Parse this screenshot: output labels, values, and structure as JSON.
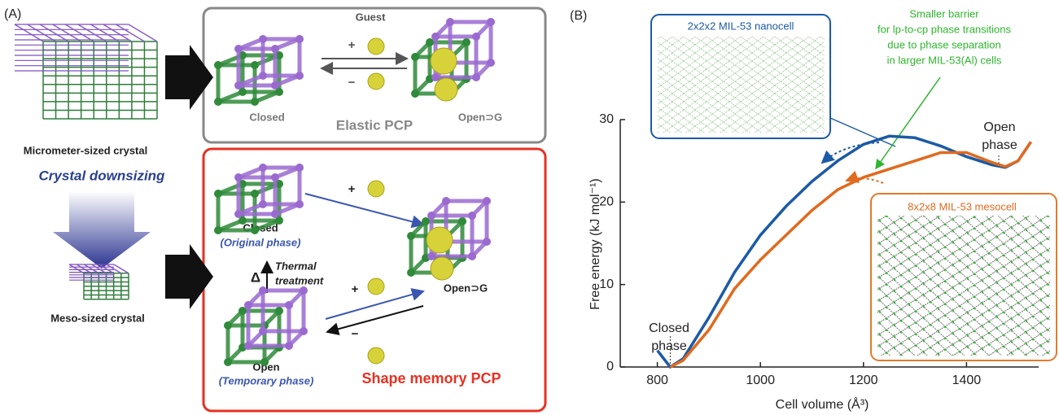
{
  "panel_a": {
    "label": "(A)",
    "micro": "Micrometer-sized crystal",
    "downsizing": "Crystal downsizing",
    "meso": "Meso-sized crystal",
    "elastic": {
      "guest": "Guest",
      "plus": "+",
      "minus": "−",
      "closed": "Closed",
      "open": "Open⊃G",
      "title": "Elastic PCP"
    },
    "memory": {
      "plus1": "+",
      "closed": "Closed",
      "original": "(Original phase)",
      "delta": "Δ",
      "thermal": "Thermal",
      "treatment": "treatment",
      "plus2": "+",
      "minus": "−",
      "open": "Open",
      "temporary": "(Temporary phase)",
      "open_guest": "Open⊃G",
      "title": "Shape memory PCP"
    }
  },
  "chart_data": {
    "type": "line",
    "panel_label": "(B)",
    "x_label": "Cell volume (Å³)",
    "y_label": "Free energy (kJ mol⁻¹)",
    "x": [
      800,
      825,
      850,
      900,
      950,
      1000,
      1050,
      1100,
      1150,
      1200,
      1250,
      1300,
      1350,
      1400,
      1450,
      1475,
      1500,
      1525
    ],
    "series": [
      {
        "name": "2x2x2 MIL-53 nanocell",
        "color": "#1b5aa5",
        "values": [
          2,
          0,
          1,
          6,
          11.5,
          16,
          19.5,
          22.5,
          25,
          27,
          28,
          27.8,
          26.8,
          25.5,
          24.5,
          24.2,
          25,
          27.3
        ]
      },
      {
        "name": "8x2x8 MIL-53 mesocell",
        "color": "#e06a1e",
        "values": [
          null,
          0,
          0.8,
          4.5,
          9.5,
          13,
          16,
          19,
          21.5,
          23,
          24,
          25,
          26,
          26,
          24.8,
          24.3,
          25,
          27.3
        ]
      }
    ],
    "xlim": [
      728,
      1540
    ],
    "ylim": [
      0,
      30
    ],
    "xticks": [
      800,
      1000,
      1200,
      1400
    ],
    "yticks": [
      0,
      10,
      20,
      30
    ],
    "annotations": {
      "closed_phase": [
        "Closed",
        "phase"
      ],
      "open_phase": [
        "Open",
        "phase"
      ],
      "barrier": [
        "Smaller barrier",
        "for lp-to-cp phase transitions",
        "due to phase separation",
        "in larger MIL-53(Al) cells"
      ]
    }
  }
}
